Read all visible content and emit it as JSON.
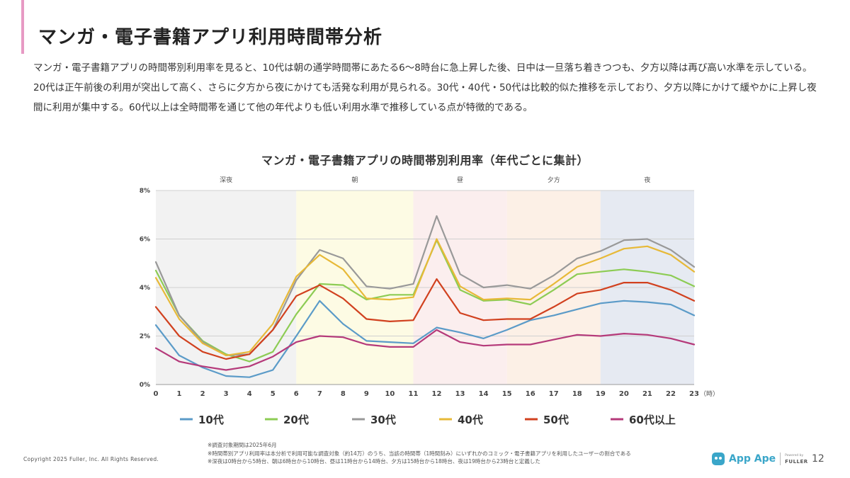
{
  "slide": {
    "title": "マンガ・電子書籍アプリ利用時間帯分析",
    "body": "マンガ・電子書籍アプリの時間帯別利用率を見ると、10代は朝の通学時間帯にあたる6〜8時台に急上昇した後、日中は一旦落ち着きつつも、夕方以降は再び高い水準を示している。20代は正午前後の利用が突出して高く、さらに夕方から夜にかけても活発な利用が見られる。30代・40代・50代は比較的似た推移を示しており、夕方以降にかけて緩やかに上昇し夜間に利用が集中する。60代以上は全時間帯を通じて他の年代よりも低い利用水準で推移している点が特徴的である。",
    "accent_color": "#e79ac4"
  },
  "chart_data": {
    "type": "line",
    "title": "マンガ・電子書籍アプリの時間帯別利用率（年代ごとに集計）",
    "xlabel": "",
    "ylabel": "",
    "x_unit": "（時）",
    "x": [
      0,
      1,
      2,
      3,
      4,
      5,
      6,
      7,
      8,
      9,
      10,
      11,
      12,
      13,
      14,
      15,
      16,
      17,
      18,
      19,
      20,
      21,
      22,
      23
    ],
    "ylim": [
      0,
      8
    ],
    "y_ticks": [
      "0%",
      "2%",
      "4%",
      "6%",
      "8%"
    ],
    "grid": true,
    "legend": "bottom",
    "bands": [
      {
        "label": "深夜",
        "from": 0,
        "to": 6,
        "color": "#f2f2f2"
      },
      {
        "label": "朝",
        "from": 6,
        "to": 11,
        "color": "#fdfbe4"
      },
      {
        "label": "昼",
        "from": 11,
        "to": 15,
        "color": "#fbeeee"
      },
      {
        "label": "夕方",
        "from": 15,
        "to": 19,
        "color": "#fcf0e6"
      },
      {
        "label": "夜",
        "from": 19,
        "to": 23,
        "color": "#e6eaf2"
      }
    ],
    "series": [
      {
        "name": "10代",
        "color": "#5b9bc8",
        "values": [
          2.45,
          1.2,
          0.7,
          0.35,
          0.3,
          0.6,
          2.0,
          3.45,
          2.5,
          1.8,
          1.75,
          1.7,
          2.35,
          2.15,
          1.9,
          2.25,
          2.65,
          2.85,
          3.1,
          3.35,
          3.45,
          3.4,
          3.3,
          2.85
        ]
      },
      {
        "name": "20代",
        "color": "#8dcc54",
        "values": [
          4.7,
          2.85,
          1.8,
          1.25,
          0.95,
          1.35,
          2.9,
          4.15,
          4.1,
          3.5,
          3.7,
          3.7,
          5.95,
          3.9,
          3.45,
          3.5,
          3.3,
          3.9,
          4.55,
          4.65,
          4.75,
          4.65,
          4.5,
          4.05
        ]
      },
      {
        "name": "30代",
        "color": "#999999",
        "values": [
          5.05,
          2.85,
          1.75,
          1.2,
          1.25,
          2.25,
          4.3,
          5.55,
          5.2,
          4.05,
          3.95,
          4.15,
          6.95,
          4.55,
          4.0,
          4.1,
          3.95,
          4.5,
          5.2,
          5.5,
          5.95,
          6.0,
          5.55,
          4.85
        ]
      },
      {
        "name": "40代",
        "color": "#e7b938",
        "values": [
          4.4,
          2.7,
          1.7,
          1.2,
          1.35,
          2.5,
          4.45,
          5.35,
          4.75,
          3.55,
          3.5,
          3.6,
          6.0,
          4.05,
          3.5,
          3.55,
          3.5,
          4.15,
          4.85,
          5.2,
          5.6,
          5.7,
          5.35,
          4.65
        ]
      },
      {
        "name": "50代",
        "color": "#d1411f",
        "values": [
          3.2,
          2.0,
          1.35,
          1.05,
          1.25,
          2.25,
          3.65,
          4.1,
          3.55,
          2.7,
          2.6,
          2.65,
          4.35,
          2.95,
          2.65,
          2.7,
          2.7,
          3.2,
          3.75,
          3.9,
          4.2,
          4.2,
          3.9,
          3.45
        ]
      },
      {
        "name": "60代以上",
        "color": "#b53a7a",
        "values": [
          1.5,
          0.95,
          0.75,
          0.6,
          0.75,
          1.15,
          1.75,
          2.0,
          1.95,
          1.65,
          1.55,
          1.55,
          2.25,
          1.75,
          1.6,
          1.65,
          1.65,
          1.85,
          2.05,
          2.0,
          2.1,
          2.05,
          1.9,
          1.65
        ]
      }
    ]
  },
  "footnotes": [
    "※調査対象期間は2025年6月",
    "※時間帯別アプリ利用率は本分析で利用可能な調査対象（約14万）のうち、当該の時間帯（1時間刻み）にいずれかのコミック・電子書籍アプリを利用したユーザーの割合である",
    "※深夜は0時台から5時台、朝は6時台から10時台、昼は11時台から14時台、夕方は15時台から18時台、夜は19時台から23時台と定義した"
  ],
  "footer": {
    "copyright": "Copyright 2025 Fuller, Inc. All Rights Reserved.",
    "app_name": "App Ape",
    "powered_by": "Powered by",
    "company": "FULLER",
    "page_number": "12"
  }
}
